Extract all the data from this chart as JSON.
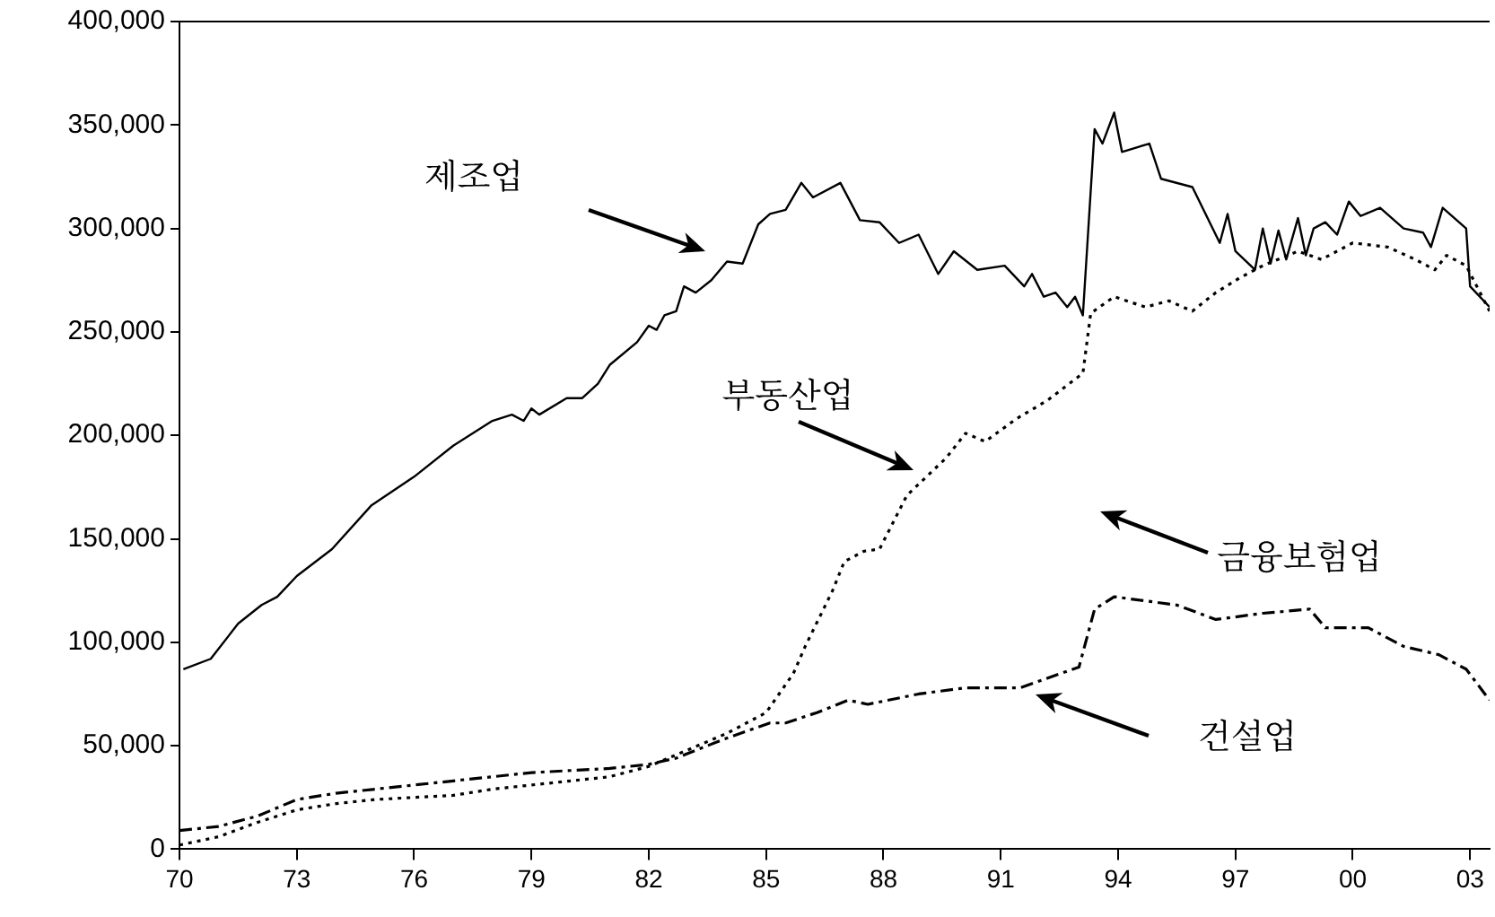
{
  "chart_data": {
    "type": "line",
    "xlim": [
      1970,
      2003.5
    ],
    "ylim": [
      0,
      400000
    ],
    "xticks": [
      {
        "value": 1970,
        "label": "70"
      },
      {
        "value": 1973,
        "label": "73"
      },
      {
        "value": 1976,
        "label": "76"
      },
      {
        "value": 1979,
        "label": "79"
      },
      {
        "value": 1982,
        "label": "82"
      },
      {
        "value": 1985,
        "label": "85"
      },
      {
        "value": 1988,
        "label": "88"
      },
      {
        "value": 1991,
        "label": "91"
      },
      {
        "value": 1994,
        "label": "94"
      },
      {
        "value": 1997,
        "label": "97"
      },
      {
        "value": 2000,
        "label": "00"
      },
      {
        "value": 2003,
        "label": "03"
      }
    ],
    "yticks": [
      {
        "value": 0,
        "label": "0"
      },
      {
        "value": 50000,
        "label": "50,000"
      },
      {
        "value": 100000,
        "label": "100,000"
      },
      {
        "value": 150000,
        "label": "150,000"
      },
      {
        "value": 200000,
        "label": "200,000"
      },
      {
        "value": 250000,
        "label": "250,000"
      },
      {
        "value": 300000,
        "label": "300,000"
      },
      {
        "value": 350000,
        "label": "350,000"
      },
      {
        "value": 400000,
        "label": "400,000"
      }
    ],
    "grid": false,
    "legend": false,
    "marker": "none",
    "series": [
      {
        "color": "#000000",
        "line_style": "solid",
        "x": [
          1970.1,
          1970.8,
          1971.5,
          1972.1,
          1972.5,
          1973.0,
          1973.9,
          1974.9,
          1976.0,
          1977.0,
          1978.0,
          1978.5,
          1978.8,
          1979.0,
          1979.2,
          1979.9,
          1980.3,
          1980.7,
          1981.0,
          1981.7,
          1982.0,
          1982.2,
          1982.4,
          1982.7,
          1982.9,
          1983.2,
          1983.6,
          1984.0,
          1984.4,
          1984.8,
          1985.1,
          1985.5,
          1985.9,
          1986.2,
          1986.9,
          1987.4,
          1987.9,
          1988.4,
          1988.9,
          1989.4,
          1989.8,
          1990.4,
          1991.1,
          1991.6,
          1991.8,
          1992.1,
          1992.4,
          1992.7,
          1992.9,
          1993.1,
          1993.4,
          1993.6,
          1993.9,
          1994.1,
          1994.8,
          1995.1,
          1995.9,
          1996.6,
          1996.8,
          1997.0,
          1997.5,
          1997.7,
          1997.9,
          1998.1,
          1998.3,
          1998.6,
          1998.8,
          1999.0,
          1999.3,
          1999.6,
          1999.9,
          2000.2,
          2000.7,
          2001.3,
          2001.8,
          2002.0,
          2002.3,
          2002.9,
          2003.0,
          2003.5
        ],
        "values": [
          87000,
          92000,
          109000,
          118000,
          122000,
          132000,
          145000,
          166000,
          180000,
          195000,
          207000,
          210000,
          207000,
          213000,
          210000,
          218000,
          218000,
          225000,
          234000,
          245000,
          253000,
          251000,
          258000,
          260000,
          272000,
          269000,
          275000,
          284000,
          283000,
          302000,
          307000,
          309000,
          322000,
          315000,
          322000,
          304000,
          303000,
          293000,
          297000,
          278000,
          289000,
          280000,
          282000,
          272000,
          278000,
          267000,
          269000,
          262000,
          267000,
          258000,
          348000,
          341000,
          356000,
          337000,
          341000,
          324000,
          320000,
          293000,
          307000,
          289000,
          280000,
          300000,
          283000,
          299000,
          285000,
          305000,
          287000,
          300000,
          303000,
          297000,
          313000,
          306000,
          310000,
          300000,
          298000,
          291000,
          310000,
          300000,
          272000,
          262000
        ]
      },
      {
        "color": "#000000",
        "line_style": "dotted",
        "x": [
          1970,
          1971,
          1972,
          1973,
          1974,
          1975,
          1976,
          1977,
          1978,
          1979,
          1980,
          1981,
          1982,
          1983,
          1984,
          1985,
          1985.7,
          1986,
          1986.7,
          1987,
          1987.5,
          1987.9,
          1988.6,
          1989.6,
          1990.1,
          1990.6,
          1991.4,
          1992.2,
          1993.1,
          1993.3,
          1993.9,
          1994.7,
          1995.3,
          1995.9,
          1996.5,
          1997.1,
          1997.7,
          1998.6,
          1999.2,
          2000.0,
          2000.9,
          2001.6,
          2002.1,
          2002.4,
          2002.9,
          2003.2,
          2003.5
        ],
        "values": [
          2000,
          6000,
          13000,
          19000,
          22000,
          24000,
          25000,
          26000,
          29000,
          31000,
          33000,
          35000,
          40000,
          48000,
          56000,
          66000,
          85000,
          98000,
          125000,
          139000,
          144000,
          145000,
          171000,
          189000,
          201000,
          197000,
          208000,
          217000,
          230000,
          259000,
          267000,
          262000,
          265000,
          260000,
          269000,
          276000,
          282000,
          289000,
          285000,
          293000,
          291000,
          285000,
          280000,
          287000,
          282000,
          271000,
          260000
        ]
      },
      {
        "color": "#000000",
        "line_style": "dashed",
        "x": [
          1970,
          1971,
          1972,
          1973,
          1974,
          1975,
          1976,
          1977,
          1978,
          1979,
          1980,
          1981,
          1982,
          1982.7,
          1983.9,
          1985.1,
          1985.5,
          1986.3,
          1987.1,
          1987.6,
          1988.9,
          1990.1,
          1991.5,
          1992.1,
          1993.0,
          1993.4,
          1993.9,
          1994.7,
          1995.5,
          1996.5,
          1997.7,
          1998.9,
          1999.3,
          2000.4,
          2001.3,
          2002.2,
          2002.9,
          2003.5
        ],
        "values": [
          9000,
          11000,
          16000,
          24000,
          27000,
          29000,
          31000,
          33000,
          35000,
          37000,
          38000,
          39000,
          41000,
          44000,
          53000,
          61000,
          61000,
          66000,
          72000,
          70000,
          75000,
          78000,
          78000,
          82000,
          88000,
          116000,
          122000,
          120000,
          118000,
          111000,
          114000,
          116000,
          107000,
          107000,
          98000,
          94000,
          87000,
          72000
        ]
      }
    ],
    "annotations": [
      "제조업",
      "부동산업",
      "금융보험업",
      "건설업"
    ]
  }
}
